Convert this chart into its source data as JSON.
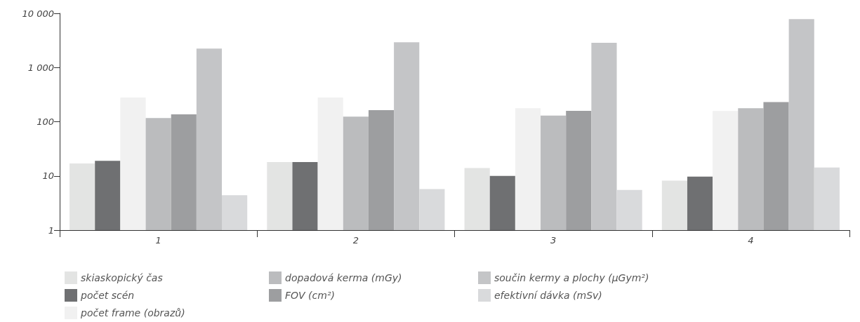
{
  "chart_data": {
    "type": "bar",
    "log": "y",
    "categories": [
      "1",
      "2",
      "3",
      "4"
    ],
    "ylim": [
      1,
      10000
    ],
    "yticks": [
      1,
      10,
      100,
      {
        "value": 1000,
        "label": "1 000"
      },
      {
        "value": 10000,
        "label": "10 000"
      }
    ],
    "grid": false,
    "legend": "bottom",
    "series": [
      {
        "name": "skiaskopický čas",
        "color": "#e3e4e3",
        "values": [
          17,
          18,
          14,
          8.2
        ]
      },
      {
        "name": "počet scén",
        "color": "#6f7072",
        "values": [
          19,
          18,
          10,
          9.7
        ]
      },
      {
        "name": "počet frame (obrazů)",
        "color": "#f1f1f1",
        "values": [
          280,
          280,
          177,
          157
        ]
      },
      {
        "name": "dopadová kerma (mGy)",
        "color": "#bbbcbe",
        "values": [
          117,
          124,
          130,
          177
        ]
      },
      {
        "name": "FOV (cm²)",
        "color": "#9d9ea0",
        "values": [
          137,
          163,
          159,
          230
        ]
      },
      {
        "name": "součin kermy a plochy (µGym²)",
        "color": "#c4c5c7",
        "values": [
          2240,
          2930,
          2850,
          7800
        ]
      },
      {
        "name": "efektivní dávka (mSv)",
        "color": "#d9dadc",
        "values": [
          4.4,
          5.7,
          5.5,
          14.3
        ]
      }
    ]
  }
}
